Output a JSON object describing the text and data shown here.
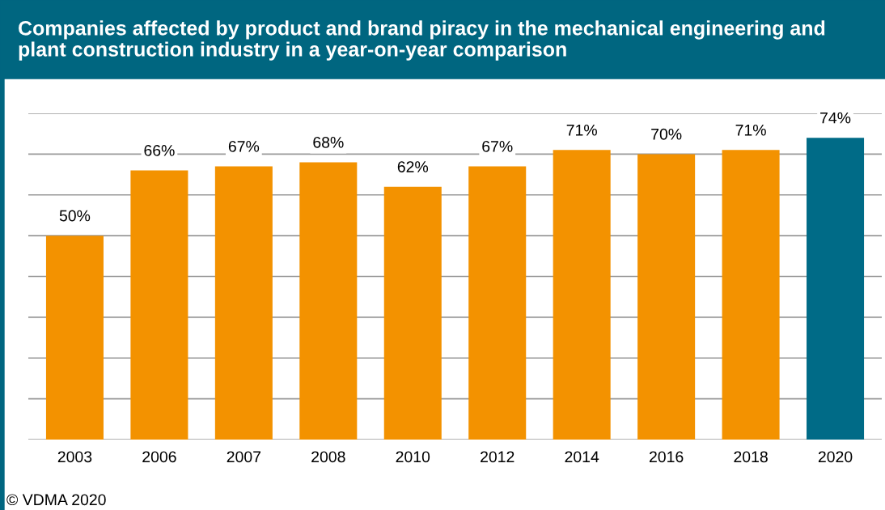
{
  "chart_data": {
    "type": "bar",
    "title": "Companies affected by product and brand piracy in the mechanical engineering and\nplant construction industry in a year-on-year comparison",
    "categories": [
      "2003",
      "2006",
      "2007",
      "2008",
      "2010",
      "2012",
      "2014",
      "2016",
      "2018",
      "2020"
    ],
    "values": [
      50,
      66,
      67,
      68,
      62,
      67,
      71,
      70,
      71,
      74
    ],
    "colors": [
      "#f39200",
      "#f39200",
      "#f39200",
      "#f39200",
      "#f39200",
      "#f39200",
      "#f39200",
      "#f39200",
      "#f39200",
      "#006b87"
    ],
    "value_labels": [
      "50%",
      "66%",
      "67%",
      "68%",
      "62%",
      "67%",
      "71%",
      "70%",
      "71%",
      "74%"
    ],
    "ylim": [
      0,
      80
    ],
    "yticks": [
      {
        "value": 0,
        "label": null
      },
      {
        "value": 10,
        "label": null
      },
      {
        "value": 20,
        "label": null
      },
      {
        "value": 30,
        "label": null
      },
      {
        "value": 40,
        "label": null
      },
      {
        "value": 50,
        "label": null
      },
      {
        "value": 60,
        "label": null
      },
      {
        "value": 70,
        "label": null
      },
      {
        "value": 80,
        "label": null
      }
    ],
    "tick_labels": "x",
    "grid": "y",
    "legend": false,
    "annotations": [
      "© VDMA 2020"
    ]
  }
}
